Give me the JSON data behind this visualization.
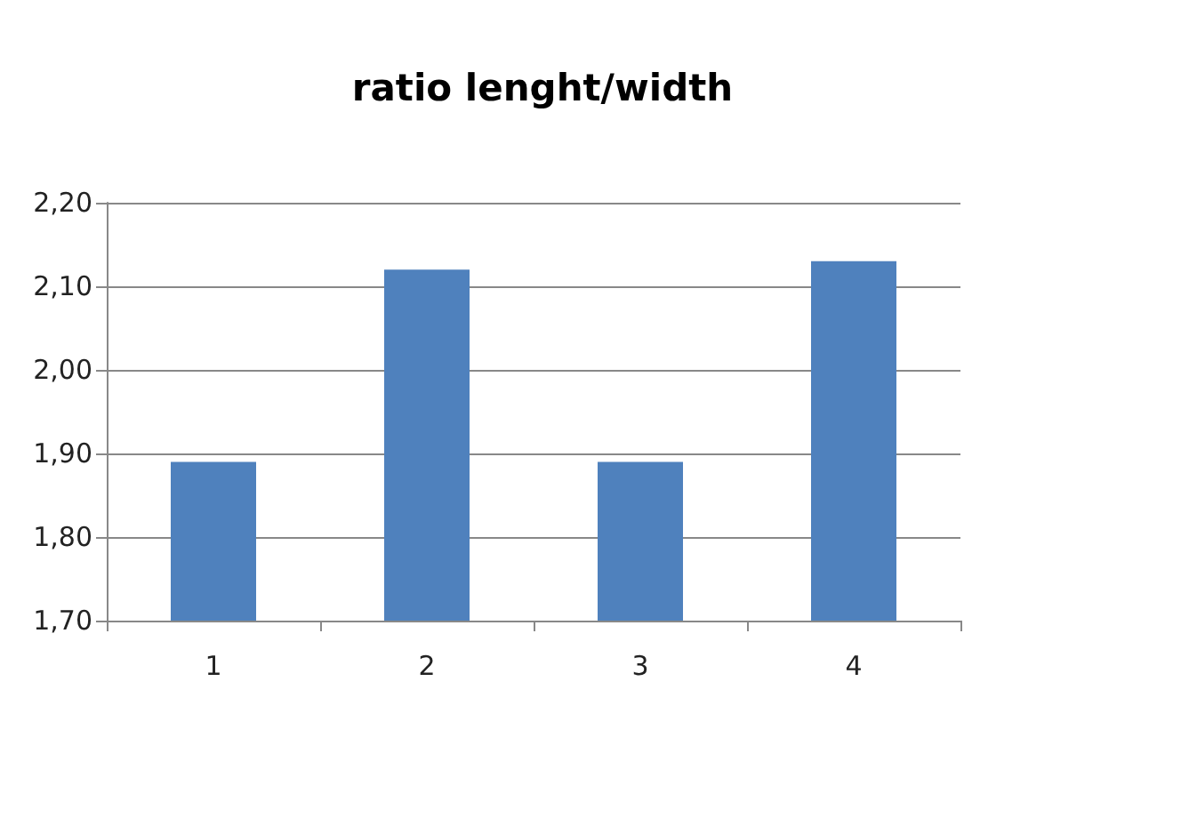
{
  "chart_data": {
    "type": "bar",
    "title": "ratio lenght/width",
    "categories": [
      "1",
      "2",
      "3",
      "4"
    ],
    "values": [
      1.89,
      2.12,
      1.89,
      2.13
    ],
    "color": "#4f81bd",
    "ylim": [
      1.7,
      2.2
    ],
    "yticks": [
      {
        "value": 1.7,
        "label": "1,70"
      },
      {
        "value": 1.8,
        "label": "1,80"
      },
      {
        "value": 1.9,
        "label": "1,90"
      },
      {
        "value": 2.0,
        "label": "2,00"
      },
      {
        "value": 2.1,
        "label": "2,10"
      },
      {
        "value": 2.2,
        "label": "2,20"
      }
    ],
    "grid": "y"
  }
}
